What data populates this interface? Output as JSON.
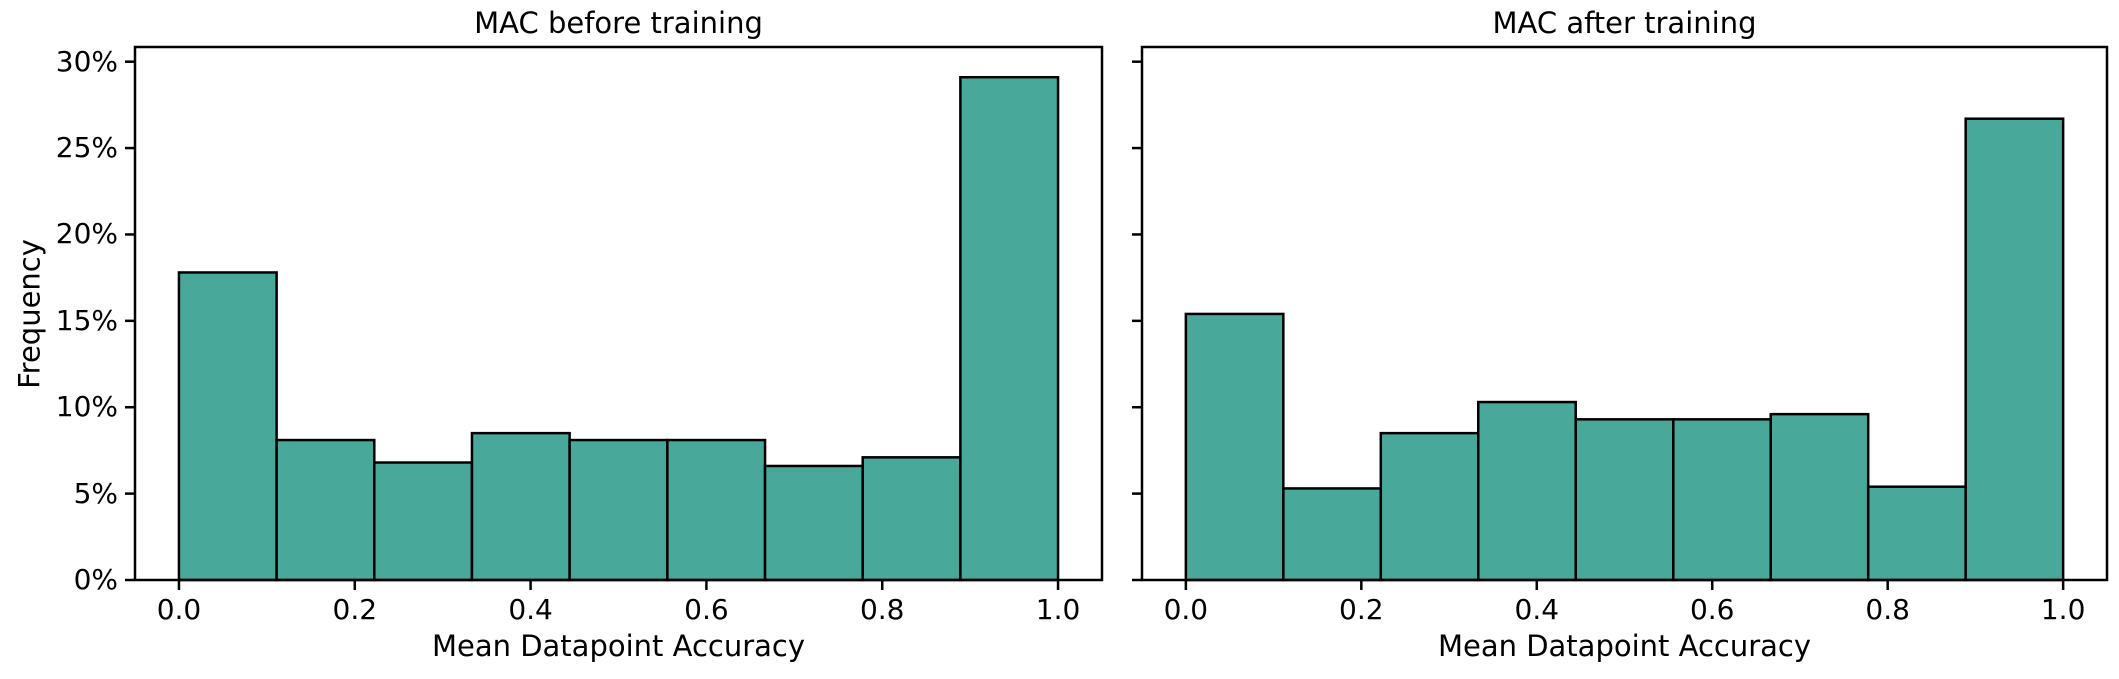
{
  "figure": {
    "background": "#ffffff",
    "text_color": "#000000",
    "bar_fill": "#48a99a",
    "bar_edge": "#000000",
    "axis_color": "#000000"
  },
  "chart_data": [
    {
      "type": "bar",
      "subtype": "histogram",
      "title": "MAC before training",
      "xlabel": "Mean Datapoint Accuracy",
      "ylabel": "Frequency",
      "bin_edges": [
        0,
        0.1111,
        0.2222,
        0.3333,
        0.4444,
        0.5556,
        0.6667,
        0.7778,
        0.8889,
        1.0
      ],
      "values_percent": [
        17.8,
        8.1,
        6.8,
        8.5,
        8.1,
        8.1,
        6.6,
        7.1,
        29.1
      ],
      "x_tick_values": [
        0.0,
        0.2,
        0.4,
        0.6,
        0.8,
        1.0
      ],
      "x_tick_labels": [
        "0.0",
        "0.2",
        "0.4",
        "0.6",
        "0.8",
        "1.0"
      ],
      "y_tick_values": [
        0,
        5,
        10,
        15,
        20,
        25,
        30
      ],
      "y_tick_labels": [
        "0%",
        "5%",
        "10%",
        "15%",
        "20%",
        "25%",
        "30%"
      ],
      "y_tick_labels_visible": true,
      "xlim": [
        -0.05,
        1.05
      ],
      "ylim": [
        0,
        30.85
      ],
      "grid": false,
      "legend": null
    },
    {
      "type": "bar",
      "subtype": "histogram",
      "title": "MAC after training",
      "xlabel": "Mean Datapoint Accuracy",
      "ylabel": "",
      "bin_edges": [
        0,
        0.1111,
        0.2222,
        0.3333,
        0.4444,
        0.5556,
        0.6667,
        0.7778,
        0.8889,
        1.0
      ],
      "values_percent": [
        15.4,
        5.3,
        8.5,
        10.3,
        9.3,
        9.3,
        9.6,
        5.4,
        26.7
      ],
      "x_tick_values": [
        0.0,
        0.2,
        0.4,
        0.6,
        0.8,
        1.0
      ],
      "x_tick_labels": [
        "0.0",
        "0.2",
        "0.4",
        "0.6",
        "0.8",
        "1.0"
      ],
      "y_tick_values": [
        0,
        5,
        10,
        15,
        20,
        25,
        30
      ],
      "y_tick_labels": [
        "0%",
        "5%",
        "10%",
        "15%",
        "20%",
        "25%",
        "30%"
      ],
      "y_tick_labels_visible": false,
      "xlim": [
        -0.05,
        1.05
      ],
      "ylim": [
        0,
        30.85
      ],
      "grid": false,
      "legend": null
    }
  ]
}
